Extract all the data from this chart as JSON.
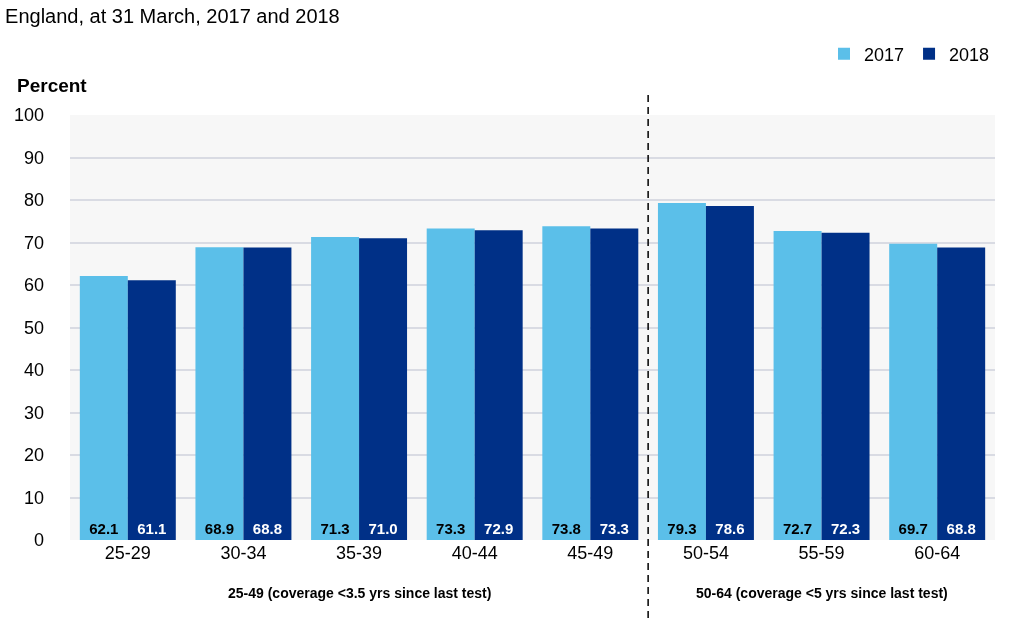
{
  "chart_data": {
    "type": "bar",
    "title": "England, at 31 March, 2017 and 2018",
    "ylabel": "Percent",
    "categories": [
      "25-29",
      "30-34",
      "35-39",
      "40-44",
      "45-49",
      "50-54",
      "55-59",
      "60-64"
    ],
    "series": [
      {
        "name": "2017",
        "color": "#5bbfe9",
        "values": [
          62.1,
          68.9,
          71.3,
          73.3,
          73.8,
          79.3,
          72.7,
          69.7
        ],
        "value_labels": [
          "62.1",
          "68.9",
          "71.3",
          "73.3",
          "73.8",
          "79.3",
          "72.7",
          "69.7"
        ]
      },
      {
        "name": "2018",
        "color": "#003087",
        "values": [
          61.1,
          68.8,
          71.0,
          72.9,
          73.3,
          78.6,
          72.3,
          68.8
        ],
        "value_labels": [
          "61.1",
          "68.8",
          "71.0",
          "72.9",
          "73.3",
          "78.6",
          "72.3",
          "68.8"
        ]
      }
    ],
    "ylim": [
      0,
      100
    ],
    "yticks": [
      0,
      10,
      20,
      30,
      40,
      50,
      60,
      70,
      80,
      90,
      100
    ],
    "grid": "y",
    "legend": "top right",
    "annotations": [
      "25-49 (coverage <3.5 yrs since last test)",
      "50-64 (coverage <5 yrs since last test)"
    ]
  }
}
